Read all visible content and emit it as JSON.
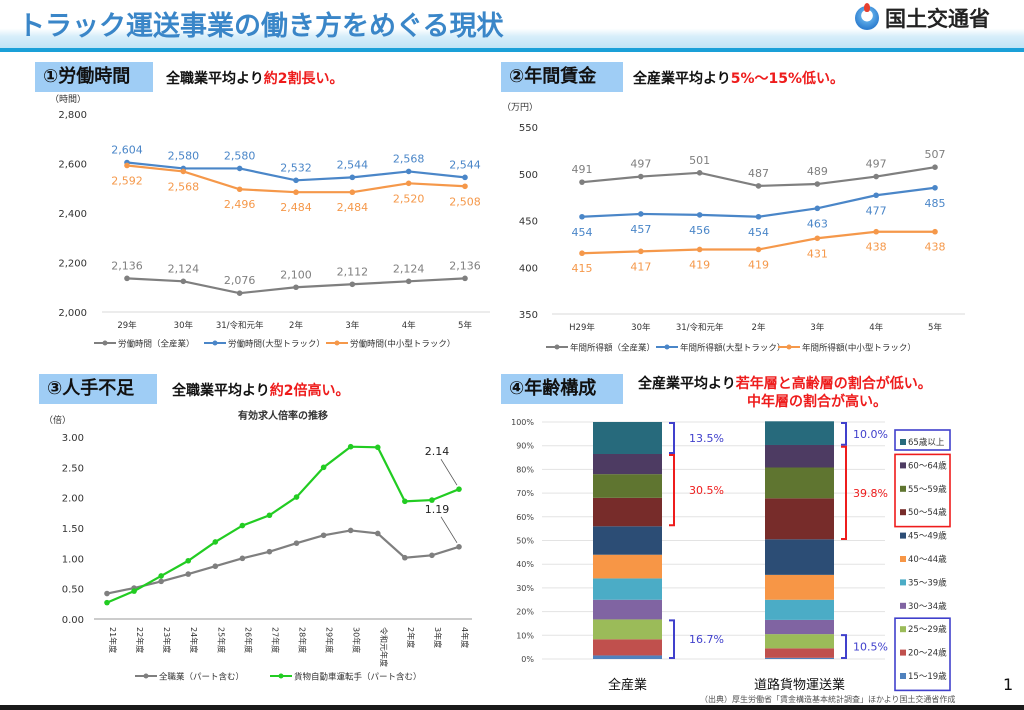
{
  "header": {
    "title": "トラック運送事業の働き方をめぐる現状",
    "logo_text": "国土交通省",
    "logo_icon": "mlit-logo-icon"
  },
  "sections": [
    {
      "label": "①労働時間",
      "sub_prefix": "全職業平均より",
      "sub_highlight": "約2割長い。"
    },
    {
      "label": "②年間賃金",
      "sub_prefix": "全産業平均より",
      "sub_highlight": "5%～15%低い。"
    },
    {
      "label": "③人手不足",
      "sub_prefix": "全職業平均より",
      "sub_highlight": "約2倍高い。"
    },
    {
      "label": "④年齢構成",
      "sub_prefix": "全産業平均より",
      "sub_highlight": "若年層と高齢層の割合が低い。",
      "sub_highlight2": "中年層の割合が高い。"
    }
  ],
  "colors": {
    "gray": "#7f7f7f",
    "blue": "#4a86c8",
    "orange": "#f5984a",
    "green": "#22cc22",
    "highlight_red": "#ee1c1c",
    "bracket_blue": "#4040cc",
    "section_label_bg": "#9fcdf5"
  },
  "chart_data": [
    {
      "type": "line",
      "id": "working-hours",
      "ylabel": "（時間）",
      "categories": [
        "29年",
        "30年",
        "31/令和元年",
        "2年",
        "3年",
        "4年",
        "5年"
      ],
      "ylim": [
        2000,
        2800
      ],
      "yticks": [
        2000,
        2200,
        2400,
        2600,
        2800
      ],
      "ytick_labels": [
        "2,000",
        "2,200",
        "2,400",
        "2,600",
        "2,800"
      ],
      "series": [
        {
          "name": "労働時間（全産業）",
          "color": "#7f7f7f",
          "values": [
            2136,
            2124,
            2076,
            2100,
            2112,
            2124,
            2136
          ],
          "labels": [
            "2,136",
            "2,124",
            "2,076",
            "2,100",
            "2,112",
            "2,124",
            "2,136"
          ],
          "label_pos": "above"
        },
        {
          "name": "労働時間(大型トラック）",
          "color": "#4a86c8",
          "values": [
            2604,
            2580,
            2580,
            2532,
            2544,
            2568,
            2544
          ],
          "labels": [
            "2,604",
            "2,580",
            "2,580",
            "2,532",
            "2,544",
            "2,568",
            "2,544"
          ],
          "label_pos": "above"
        },
        {
          "name": "労働時間(中小型トラック）",
          "color": "#f5984a",
          "values": [
            2592,
            2568,
            2496,
            2484,
            2484,
            2520,
            2508
          ],
          "labels": [
            "2,592",
            "2,568",
            "2,496",
            "2,484",
            "2,484",
            "2,520",
            "2,508"
          ],
          "label_pos": "below"
        }
      ],
      "legend": "bottom"
    },
    {
      "type": "line",
      "id": "annual-income",
      "ylabel": "（万円）",
      "categories": [
        "H29年",
        "30年",
        "31/令和元年",
        "2年",
        "3年",
        "4年",
        "5年"
      ],
      "ylim": [
        350,
        550
      ],
      "yticks": [
        350,
        400,
        450,
        500,
        550
      ],
      "ytick_labels": [
        "350",
        "400",
        "450",
        "500",
        "550"
      ],
      "series": [
        {
          "name": "年間所得額（全産業）",
          "color": "#7f7f7f",
          "values": [
            491,
            497,
            501,
            487,
            489,
            497,
            507
          ],
          "labels": [
            "491",
            "497",
            "501",
            "487",
            "489",
            "497",
            "507"
          ],
          "label_pos": "above"
        },
        {
          "name": "年間所得額(大型トラック）",
          "color": "#4a86c8",
          "values": [
            454,
            457,
            456,
            454,
            463,
            477,
            485
          ],
          "labels": [
            "454",
            "457",
            "456",
            "454",
            "463",
            "477",
            "485"
          ],
          "label_pos": "below"
        },
        {
          "name": "年間所得額(中小型トラック）",
          "color": "#f5984a",
          "values": [
            415,
            417,
            419,
            419,
            431,
            438,
            438
          ],
          "labels": [
            "415",
            "417",
            "419",
            "419",
            "431",
            "438",
            "438"
          ],
          "label_pos": "below"
        }
      ],
      "legend": "bottom"
    },
    {
      "type": "line",
      "id": "job-opening-ratio",
      "title": "有効求人倍率の推移",
      "ylabel": "（倍）",
      "categories": [
        "21年度",
        "22年度",
        "23年度",
        "24年度",
        "25年度",
        "26年度",
        "27年度",
        "28年度",
        "29年度",
        "30年度",
        "令和元年度",
        "2年度",
        "3年度",
        "4年度"
      ],
      "ylim": [
        0,
        3
      ],
      "yticks": [
        0,
        0.5,
        1,
        1.5,
        2,
        2.5,
        3
      ],
      "ytick_labels": [
        "0.00",
        "0.50",
        "1.00",
        "1.50",
        "2.00",
        "2.50",
        "3.00"
      ],
      "series": [
        {
          "name": "全職業（パート含む）",
          "color": "#7f7f7f",
          "values": [
            0.42,
            0.51,
            0.62,
            0.74,
            0.87,
            1.0,
            1.11,
            1.25,
            1.38,
            1.46,
            1.41,
            1.01,
            1.05,
            1.19
          ]
        },
        {
          "name": "貨物自動車運転手（パート含む）",
          "color": "#22cc22",
          "values": [
            0.27,
            0.46,
            0.71,
            0.96,
            1.27,
            1.54,
            1.71,
            2.01,
            2.5,
            2.84,
            2.83,
            1.94,
            1.96,
            2.14
          ]
        }
      ],
      "annotations": [
        {
          "series": 1,
          "index": 13,
          "text": "2.14"
        },
        {
          "series": 0,
          "index": 13,
          "text": "1.19"
        }
      ],
      "legend": "bottom"
    },
    {
      "type": "bar",
      "stacked": true,
      "id": "age-composition",
      "categories": [
        "全産業",
        "道路貨物運送業"
      ],
      "ylim": [
        0,
        100
      ],
      "yticks": [
        0,
        10,
        20,
        30,
        40,
        50,
        60,
        70,
        80,
        90,
        100
      ],
      "ytick_labels": [
        "0%",
        "10%",
        "20%",
        "30%",
        "40%",
        "50%",
        "60%",
        "70%",
        "80%",
        "90%",
        "100%"
      ],
      "series": [
        {
          "name": "15～19歳",
          "color": "#4f81bd",
          "values": [
            1.5,
            0.5
          ]
        },
        {
          "name": "20～24歳",
          "color": "#c0504d",
          "values": [
            6.8,
            4.0
          ]
        },
        {
          "name": "25～29歳",
          "color": "#9bbb59",
          "values": [
            8.4,
            6.0
          ]
        },
        {
          "name": "30～34歳",
          "color": "#8064a2",
          "values": [
            8.3,
            6.0
          ]
        },
        {
          "name": "35～39歳",
          "color": "#4bacc6",
          "values": [
            9.0,
            8.5
          ]
        },
        {
          "name": "40～44歳",
          "color": "#f79646",
          "values": [
            10.0,
            10.5
          ]
        },
        {
          "name": "45～49歳",
          "color": "#2c4d75",
          "values": [
            12.0,
            15.0
          ]
        },
        {
          "name": "50～54歳",
          "color": "#772c2a",
          "values": [
            12.0,
            17.3
          ]
        },
        {
          "name": "55～59歳",
          "color": "#5f7530",
          "values": [
            10.0,
            13.0
          ]
        },
        {
          "name": "60～64歳",
          "color": "#4d3b62",
          "values": [
            8.5,
            9.5
          ]
        },
        {
          "name": "65歳以上",
          "color": "#276a7c",
          "values": [
            13.5,
            10.0
          ]
        }
      ],
      "brackets": [
        {
          "bar": 0,
          "from": 86.5,
          "to": 100,
          "text": "13.5%",
          "color": "#4040cc"
        },
        {
          "bar": 0,
          "from": 56,
          "to": 86.5,
          "text": "30.5%",
          "color": "#ee1c1c"
        },
        {
          "bar": 0,
          "from": 0,
          "to": 16.7,
          "text": "16.7%",
          "color": "#4040cc"
        },
        {
          "bar": 1,
          "from": 90,
          "to": 100,
          "text": "10.0%",
          "color": "#4040cc"
        },
        {
          "bar": 1,
          "from": 50.2,
          "to": 90,
          "text": "39.8%",
          "color": "#ee1c1c"
        },
        {
          "bar": 1,
          "from": 0,
          "to": 10.5,
          "text": "10.5%",
          "color": "#4040cc"
        }
      ],
      "legend": "right"
    }
  ],
  "footer": {
    "page_number": "1",
    "source": "（出典）厚生労働省「賃金構造基本統計調査」ほかより国土交通省作成"
  }
}
